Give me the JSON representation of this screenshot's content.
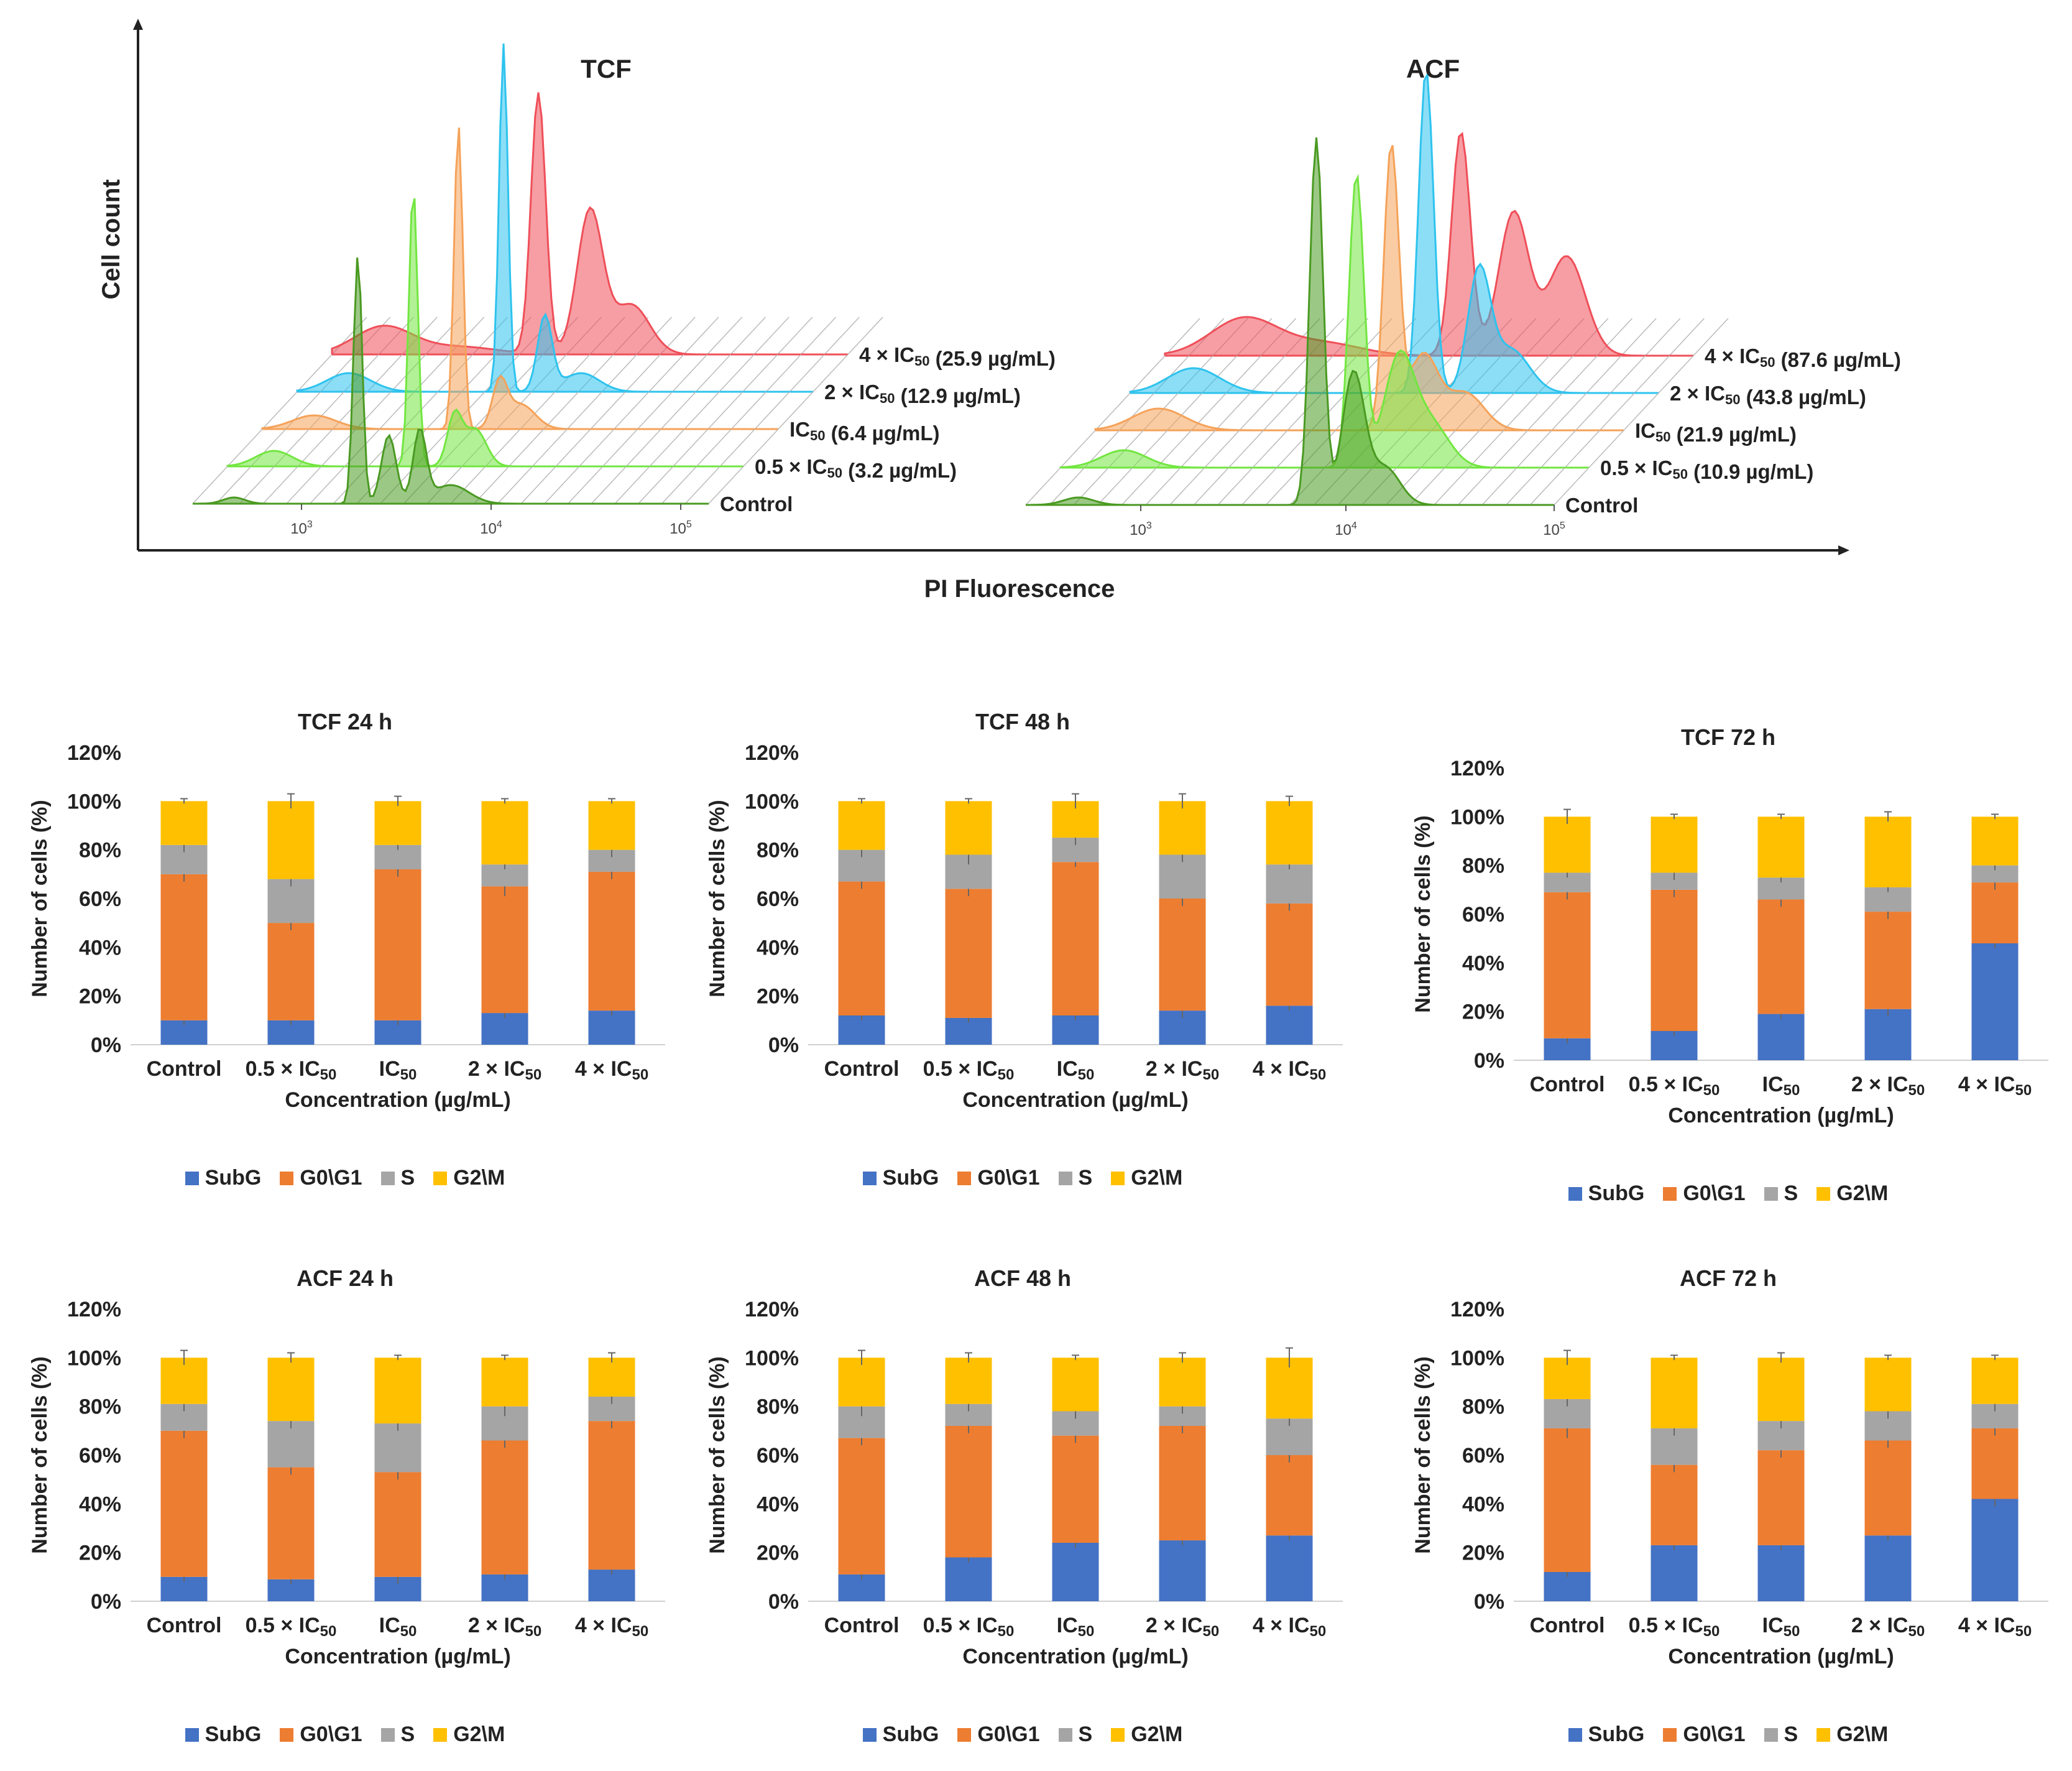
{
  "histograms": {
    "x_axis_label": "PI Fluorescence",
    "y_axis_label": "Cell count",
    "panels": [
      {
        "title": "TCF",
        "tick_labels": [
          "10^3",
          "10^4",
          "10^5"
        ],
        "series": [
          {
            "label": "Control",
            "color": "#4a9a22"
          },
          {
            "label": "0.5 × IC50 (3.2 µg/mL)",
            "color": "#72e640"
          },
          {
            "label": "IC50 (6.4 µg/mL)",
            "color": "#f5a259"
          },
          {
            "label": "2 × IC50 (12.9 µg/mL)",
            "color": "#2ec3ee"
          },
          {
            "label": "4 × IC50 (25.9 µg/mL)",
            "color": "#ef4f59"
          }
        ]
      },
      {
        "title": "ACF",
        "tick_labels": [
          "10^3",
          "10^4",
          "10^5"
        ],
        "series": [
          {
            "label": "Control",
            "color": "#4a9a22"
          },
          {
            "label": "0.5 × IC50 (10.9 µg/mL)",
            "color": "#72e640"
          },
          {
            "label": "IC50 (21.9 µg/mL)",
            "color": "#f5a259"
          },
          {
            "label": "2 × IC50 (43.8 µg/mL)",
            "color": "#2ec3ee"
          },
          {
            "label": "4 × IC50 (87.6 µg/mL)",
            "color": "#ef4f59"
          }
        ]
      }
    ]
  },
  "phase_colors": {
    "SubG": "#4472c4",
    "G0\\G1": "#ed7d31",
    "S": "#a5a5a5",
    "G2\\M": "#ffc000"
  },
  "legend_labels": [
    "SubG",
    "G0\\G1",
    "S",
    "G2\\M"
  ],
  "chart_data": [
    {
      "type": "bar",
      "stacked": true,
      "title": "TCF 24 h",
      "xlabel": "Concentration (µg/mL)",
      "ylabel": "Number of cells (%)",
      "categories": [
        "Control",
        "0.5 × IC50",
        "IC50",
        "2 × IC50",
        "4 × IC50"
      ],
      "yticks": [
        "0%",
        "20%",
        "40%",
        "60%",
        "80%",
        "100%",
        "120%"
      ],
      "ylim": [
        0,
        120
      ],
      "series": [
        {
          "name": "SubG",
          "values": [
            10,
            10,
            10,
            13,
            14
          ]
        },
        {
          "name": "G0\\G1",
          "values": [
            60,
            40,
            62,
            52,
            57
          ]
        },
        {
          "name": "S",
          "values": [
            12,
            18,
            10,
            9,
            9
          ]
        },
        {
          "name": "G2\\M",
          "values": [
            18,
            32,
            18,
            26,
            20
          ]
        }
      ],
      "errors": [
        [
          2,
          2,
          2,
          2,
          2
        ],
        [
          3,
          3,
          3,
          4,
          3
        ],
        [
          3,
          3,
          2,
          2,
          3
        ],
        [
          1,
          3,
          2,
          1,
          1
        ]
      ]
    },
    {
      "type": "bar",
      "stacked": true,
      "title": "TCF 48 h",
      "xlabel": "Concentration (µg/mL)",
      "ylabel": "Number of cells (%)",
      "categories": [
        "Control",
        "0.5 × IC50",
        "IC50",
        "2 × IC50",
        "4 × IC50"
      ],
      "yticks": [
        "0%",
        "20%",
        "40%",
        "60%",
        "80%",
        "100%",
        "120%"
      ],
      "ylim": [
        0,
        120
      ],
      "series": [
        {
          "name": "SubG",
          "values": [
            12,
            11,
            12,
            14,
            16
          ]
        },
        {
          "name": "G0\\G1",
          "values": [
            55,
            53,
            63,
            46,
            42
          ]
        },
        {
          "name": "S",
          "values": [
            13,
            14,
            10,
            18,
            16
          ]
        },
        {
          "name": "G2\\M",
          "values": [
            20,
            22,
            15,
            22,
            26
          ]
        }
      ],
      "errors": [
        [
          2,
          2,
          2,
          3,
          2
        ],
        [
          3,
          3,
          2,
          3,
          3
        ],
        [
          3,
          4,
          3,
          3,
          2
        ],
        [
          1,
          1,
          3,
          3,
          2
        ]
      ]
    },
    {
      "type": "bar",
      "stacked": true,
      "title": "TCF 72 h",
      "xlabel": "Concentration (µg/mL)",
      "ylabel": "Number of cells (%)",
      "categories": [
        "Control",
        "0.5 × IC50",
        "IC50",
        "2 × IC50",
        "4 × IC50"
      ],
      "yticks": [
        "0%",
        "20%",
        "40%",
        "60%",
        "80%",
        "100%",
        "120%"
      ],
      "ylim": [
        0,
        120
      ],
      "series": [
        {
          "name": "SubG",
          "values": [
            9,
            12,
            19,
            21,
            48
          ]
        },
        {
          "name": "G0\\G1",
          "values": [
            60,
            58,
            47,
            40,
            25
          ]
        },
        {
          "name": "S",
          "values": [
            8,
            7,
            9,
            10,
            7
          ]
        },
        {
          "name": "G2\\M",
          "values": [
            23,
            23,
            25,
            29,
            20
          ]
        }
      ],
      "errors": [
        [
          2,
          2,
          2,
          3,
          2
        ],
        [
          3,
          3,
          3,
          3,
          3
        ],
        [
          2,
          3,
          2,
          2,
          2
        ],
        [
          3,
          1,
          1,
          2,
          1
        ]
      ]
    },
    {
      "type": "bar",
      "stacked": true,
      "title": "ACF 24 h",
      "xlabel": "Concentration (µg/mL)",
      "ylabel": "Number of cells (%)",
      "categories": [
        "Control",
        "0.5 × IC50",
        "IC50",
        "2 × IC50",
        "4 × IC50"
      ],
      "yticks": [
        "0%",
        "20%",
        "40%",
        "60%",
        "80%",
        "100%",
        "120%"
      ],
      "ylim": [
        0,
        120
      ],
      "series": [
        {
          "name": "SubG",
          "values": [
            10,
            9,
            10,
            11,
            13
          ]
        },
        {
          "name": "G0\\G1",
          "values": [
            60,
            46,
            43,
            55,
            61
          ]
        },
        {
          "name": "S",
          "values": [
            11,
            19,
            20,
            14,
            10
          ]
        },
        {
          "name": "G2\\M",
          "values": [
            19,
            26,
            27,
            20,
            16
          ]
        }
      ],
      "errors": [
        [
          2,
          2,
          3,
          2,
          2
        ],
        [
          3,
          3,
          3,
          3,
          3
        ],
        [
          3,
          3,
          3,
          4,
          3
        ],
        [
          3,
          2,
          1,
          1,
          2
        ]
      ]
    },
    {
      "type": "bar",
      "stacked": true,
      "title": "ACF 48 h",
      "xlabel": "Concentration (µg/mL)",
      "ylabel": "Number of cells (%)",
      "categories": [
        "Control",
        "0.5 × IC50",
        "IC50",
        "2 × IC50",
        "4 × IC50"
      ],
      "yticks": [
        "0%",
        "20%",
        "40%",
        "60%",
        "80%",
        "100%",
        "120%"
      ],
      "ylim": [
        0,
        120
      ],
      "series": [
        {
          "name": "SubG",
          "values": [
            11,
            18,
            24,
            25,
            27
          ]
        },
        {
          "name": "G0\\G1",
          "values": [
            56,
            54,
            44,
            47,
            33
          ]
        },
        {
          "name": "S",
          "values": [
            13,
            9,
            10,
            8,
            15
          ]
        },
        {
          "name": "G2\\M",
          "values": [
            20,
            19,
            22,
            20,
            25
          ]
        }
      ],
      "errors": [
        [
          2,
          2,
          2,
          2,
          2
        ],
        [
          3,
          3,
          3,
          3,
          3
        ],
        [
          4,
          3,
          3,
          3,
          3
        ],
        [
          3,
          2,
          1,
          2,
          4
        ]
      ]
    },
    {
      "type": "bar",
      "stacked": true,
      "title": "ACF 72 h",
      "xlabel": "Concentration (µg/mL)",
      "ylabel": "Number of cells (%)",
      "categories": [
        "Control",
        "0.5 × IC50",
        "IC50",
        "2 × IC50",
        "4 × IC50"
      ],
      "yticks": [
        "0%",
        "20%",
        "40%",
        "60%",
        "80%",
        "100%",
        "120%"
      ],
      "ylim": [
        0,
        120
      ],
      "series": [
        {
          "name": "SubG",
          "values": [
            12,
            23,
            23,
            27,
            42
          ]
        },
        {
          "name": "G0\\G1",
          "values": [
            59,
            33,
            39,
            39,
            29
          ]
        },
        {
          "name": "S",
          "values": [
            12,
            15,
            12,
            12,
            10
          ]
        },
        {
          "name": "G2\\M",
          "values": [
            17,
            29,
            26,
            22,
            19
          ]
        }
      ],
      "errors": [
        [
          2,
          2,
          2,
          2,
          3
        ],
        [
          4,
          3,
          3,
          3,
          3
        ],
        [
          3,
          3,
          3,
          3,
          3
        ],
        [
          3,
          1,
          2,
          1,
          1
        ]
      ]
    }
  ]
}
